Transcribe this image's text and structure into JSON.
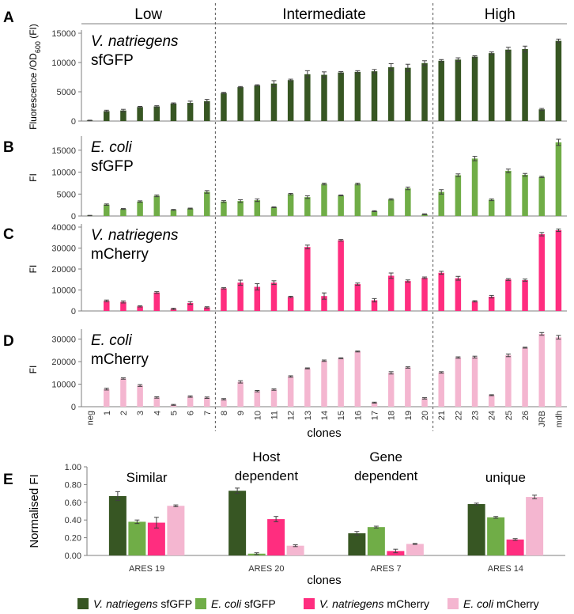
{
  "chart_data": [
    {
      "panel": "A",
      "type": "bar",
      "label_species": "V. natriegens",
      "label_reporter": "sfGFP",
      "ylabel_main": "Fluorescence /OD",
      "ylabel_sub": "600",
      "ylabel_tail": " (FI)",
      "ylim": [
        0,
        15000
      ],
      "yticks": [
        "0",
        "5000",
        "10000",
        "15000"
      ],
      "ytick_values": [
        0,
        5000,
        10000,
        15000
      ],
      "color": "#375623",
      "group_labels": [
        "Low",
        "Intermediate",
        "High"
      ],
      "categories": [
        "neg",
        "1",
        "2",
        "3",
        "4",
        "5",
        "6",
        "7",
        "8",
        "9",
        "10",
        "11",
        "12",
        "13",
        "14",
        "15",
        "16",
        "17",
        "18",
        "19",
        "20",
        "21",
        "22",
        "23",
        "24",
        "25",
        "26",
        "JRB",
        "mdh"
      ],
      "values": [
        100,
        1700,
        1800,
        2400,
        2500,
        3000,
        3100,
        3400,
        4800,
        5800,
        6100,
        6400,
        7000,
        8000,
        7900,
        8300,
        8400,
        8500,
        9200,
        9100,
        9900,
        10300,
        10500,
        11000,
        11600,
        12200,
        12300,
        2000,
        13700
      ],
      "errors": [
        50,
        150,
        200,
        100,
        120,
        100,
        300,
        300,
        100,
        100,
        100,
        500,
        150,
        600,
        500,
        150,
        200,
        300,
        600,
        600,
        400,
        200,
        300,
        150,
        200,
        400,
        500,
        150,
        300
      ]
    },
    {
      "panel": "B",
      "type": "bar",
      "label_species": "E. coli",
      "label_reporter": "sfGFP",
      "ylabel": "FI",
      "ylim": [
        0,
        17500
      ],
      "yticks": [
        "0",
        "5000",
        "10000",
        "15000"
      ],
      "ytick_values": [
        0,
        5000,
        10000,
        15000
      ],
      "color": "#70AD47",
      "categories": [
        "neg",
        "1",
        "2",
        "3",
        "4",
        "5",
        "6",
        "7",
        "8",
        "9",
        "10",
        "11",
        "12",
        "13",
        "14",
        "15",
        "16",
        "17",
        "18",
        "19",
        "20",
        "21",
        "22",
        "23",
        "24",
        "25",
        "26",
        "JRB",
        "mdh"
      ],
      "values": [
        100,
        2600,
        1600,
        3300,
        4600,
        1400,
        1700,
        5500,
        3300,
        3400,
        3600,
        2000,
        5000,
        4300,
        7300,
        4700,
        7300,
        1100,
        3800,
        6300,
        400,
        5500,
        9300,
        13100,
        3700,
        10300,
        9400,
        8900,
        16800
      ],
      "errors": [
        50,
        150,
        100,
        150,
        200,
        100,
        100,
        300,
        200,
        300,
        300,
        100,
        150,
        300,
        200,
        100,
        200,
        100,
        150,
        300,
        100,
        500,
        300,
        500,
        200,
        400,
        300,
        150,
        700
      ]
    },
    {
      "panel": "C",
      "type": "bar",
      "label_species": "V. natriegens",
      "label_reporter": "mCherry",
      "ylabel": "FI",
      "ylim": [
        0,
        40000
      ],
      "yticks": [
        "0",
        "10000",
        "20000",
        "30000",
        "40000"
      ],
      "ytick_values": [
        0,
        10000,
        20000,
        30000,
        40000
      ],
      "color": "#FF2D7F",
      "categories": [
        "neg",
        "1",
        "2",
        "3",
        "4",
        "5",
        "6",
        "7",
        "8",
        "9",
        "10",
        "11",
        "12",
        "13",
        "14",
        "15",
        "16",
        "17",
        "18",
        "19",
        "20",
        "21",
        "22",
        "23",
        "24",
        "25",
        "26",
        "JRB",
        "mdh"
      ],
      "values": [
        0,
        4800,
        4300,
        2200,
        8800,
        1000,
        3800,
        1700,
        10800,
        13500,
        11500,
        13500,
        6700,
        30500,
        7100,
        33700,
        12800,
        5100,
        16800,
        14300,
        15800,
        18200,
        15600,
        4600,
        6800,
        15000,
        14700,
        36600,
        38500
      ],
      "errors": [
        0,
        400,
        500,
        300,
        400,
        300,
        600,
        300,
        300,
        1200,
        1500,
        900,
        300,
        900,
        1500,
        400,
        500,
        800,
        1300,
        500,
        400,
        700,
        900,
        300,
        600,
        400,
        500,
        800,
        600
      ]
    },
    {
      "panel": "D",
      "type": "bar",
      "label_species": "E. coli",
      "label_reporter": "mCherry",
      "ylabel": "FI",
      "ylim": [
        0,
        33000
      ],
      "yticks": [
        "0",
        "10000",
        "20000",
        "30000"
      ],
      "ytick_values": [
        0,
        10000,
        20000,
        30000
      ],
      "color": "#F4B6D0",
      "categories": [
        "neg",
        "1",
        "2",
        "3",
        "4",
        "5",
        "6",
        "7",
        "8",
        "9",
        "10",
        "11",
        "12",
        "13",
        "14",
        "15",
        "16",
        "17",
        "18",
        "19",
        "20",
        "21",
        "22",
        "23",
        "24",
        "25",
        "26",
        "JRB",
        "mdh"
      ],
      "values": [
        0,
        7800,
        12500,
        9400,
        4100,
        800,
        4500,
        4000,
        3300,
        11000,
        6900,
        7600,
        13400,
        17000,
        20400,
        21500,
        24500,
        1800,
        15000,
        17400,
        3700,
        15200,
        21800,
        22000,
        5100,
        22800,
        26200,
        32300,
        30800
      ],
      "errors": [
        0,
        400,
        300,
        400,
        300,
        200,
        300,
        300,
        300,
        500,
        300,
        300,
        300,
        200,
        300,
        200,
        200,
        200,
        500,
        300,
        300,
        300,
        300,
        400,
        200,
        600,
        200,
        600,
        800
      ],
      "xlabel": "clones"
    },
    {
      "panel": "E",
      "type": "bar",
      "ylabel": "Normalised FI",
      "xlabel": "clones",
      "ylim": [
        0,
        1.0
      ],
      "yticks": [
        "0.00",
        "0.20",
        "0.40",
        "0.60",
        "0.80",
        "1.00"
      ],
      "ytick_values": [
        0,
        0.2,
        0.4,
        0.6,
        0.8,
        1.0
      ],
      "categories": [
        "ARES 19",
        "ARES 20",
        "ARES 7",
        "ARES 14"
      ],
      "group_titles": [
        [
          "Similar"
        ],
        [
          "Host",
          "dependent"
        ],
        [
          "Gene",
          "dependent"
        ],
        [
          "unique"
        ]
      ],
      "series": [
        {
          "name": "V. natriegens sfGFP",
          "color": "#375623",
          "values": [
            0.67,
            0.73,
            0.25,
            0.58
          ],
          "errors": [
            0.05,
            0.03,
            0.02,
            0.01
          ]
        },
        {
          "name": "E. coli sfGFP",
          "color": "#70AD47",
          "values": [
            0.38,
            0.02,
            0.32,
            0.43
          ],
          "errors": [
            0.02,
            0.01,
            0.01,
            0.01
          ]
        },
        {
          "name": "V. natriegens mCherry",
          "color": "#FF2D7F",
          "values": [
            0.37,
            0.41,
            0.05,
            0.18
          ],
          "errors": [
            0.06,
            0.03,
            0.02,
            0.01
          ]
        },
        {
          "name": "E. coli mCherry",
          "color": "#F4B6D0",
          "values": [
            0.56,
            0.11,
            0.13,
            0.66
          ],
          "errors": [
            0.01,
            0.01,
            0.005,
            0.02
          ]
        }
      ]
    }
  ],
  "legend": [
    {
      "italic": "V. natriegens",
      "plain": " sfGFP",
      "color": "#375623"
    },
    {
      "italic": "E. coli",
      "plain": " sfGFP",
      "color": "#70AD47"
    },
    {
      "italic": "V. natriegens",
      "plain": " mCherry",
      "color": "#FF2D7F"
    },
    {
      "italic": "E. coli",
      "plain": " mCherry",
      "color": "#F4B6D0"
    }
  ]
}
